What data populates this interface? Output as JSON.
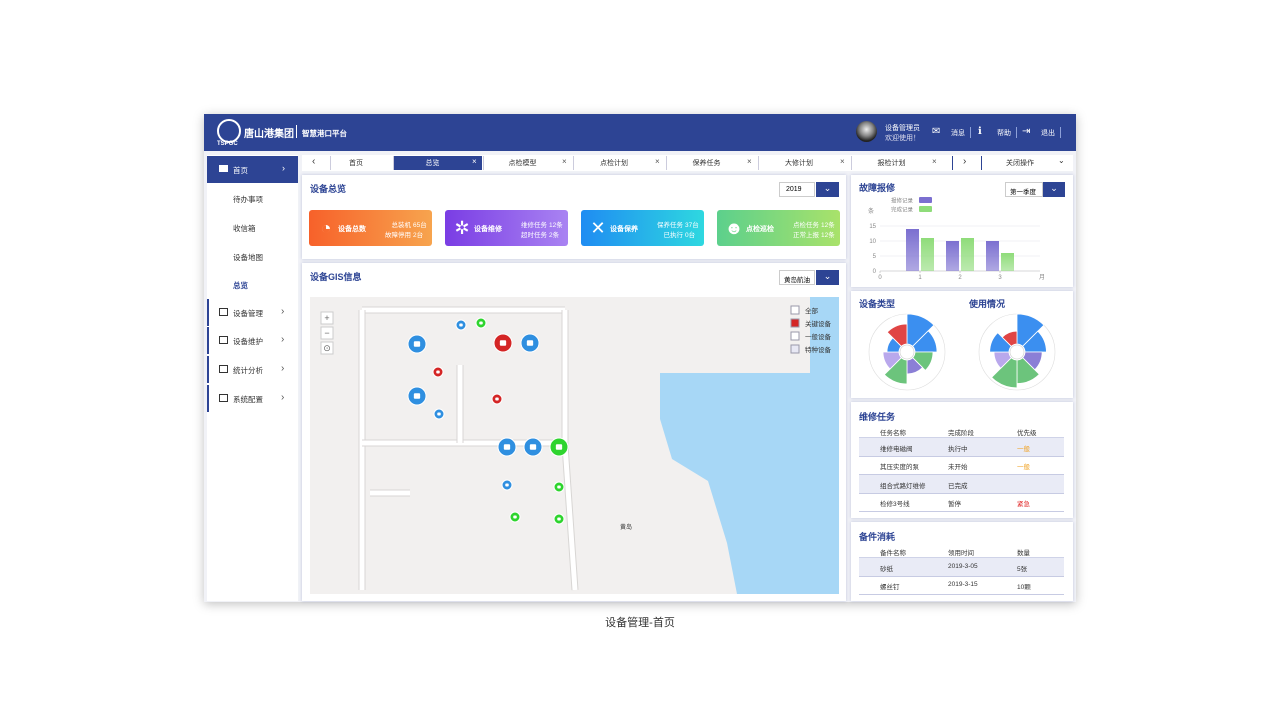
{
  "header": {
    "logo_text": "唐山港集团",
    "logo_sub": "TSPGC",
    "platform": "智慧港口平台",
    "user_role": "设备管理员",
    "user_greeting": "欢迎使用！",
    "actions": [
      "消息",
      "帮助",
      "退出"
    ]
  },
  "sidebar": {
    "home": "首页",
    "sub_items": [
      "待办事项",
      "收信箱",
      "设备地图",
      "总览"
    ],
    "groups": [
      "设备管理",
      "设备维护",
      "统计分析",
      "系统配置"
    ]
  },
  "tabs": {
    "items": [
      "首页",
      "总览",
      "点检模型",
      "点检计划",
      "保养任务",
      "大修计划",
      "报检计划"
    ],
    "close_menu": "关闭操作"
  },
  "overview": {
    "title": "设备总览",
    "year": "2019",
    "cards": [
      {
        "title": "设备总数",
        "lines": [
          [
            "总装机",
            "65台"
          ],
          [
            "故障停用",
            "2台"
          ]
        ]
      },
      {
        "title": "设备维修",
        "lines": [
          [
            "维修任务",
            "12条"
          ],
          [
            "超时任务",
            "2条"
          ]
        ]
      },
      {
        "title": "设备保养",
        "lines": [
          [
            "保养任务",
            "37台"
          ],
          [
            "已执行",
            "0台"
          ]
        ]
      },
      {
        "title": "点检巡检",
        "lines": [
          [
            "点检任务",
            "12条"
          ],
          [
            "正常上报",
            "12条"
          ]
        ]
      }
    ]
  },
  "gis": {
    "title": "设备GIS信息",
    "area": "黄岛航油",
    "legend": [
      "全部",
      "关键设备",
      "一般设备",
      "特种设备"
    ],
    "place": "黄岛"
  },
  "fault_chart": {
    "type": "bar",
    "title": "故障报修",
    "period": "第一季度",
    "y_label": "条",
    "x_label": "月",
    "x": [
      1,
      2,
      3
    ],
    "xlim": [
      0,
      4
    ],
    "xticks": [
      0,
      1,
      2,
      3
    ],
    "ylim": [
      0,
      20
    ],
    "yticks": [
      0,
      5,
      10,
      15
    ],
    "grid": true,
    "series": [
      {
        "name": "报修记录",
        "color": "#7b6fd0",
        "values": [
          14,
          10,
          10
        ]
      },
      {
        "name": "完成记录",
        "color": "#8fdc7a",
        "values": [
          11,
          11,
          6
        ]
      }
    ]
  },
  "device_type": {
    "title": "设备类型",
    "values": [
      30,
      22,
      18,
      14,
      24,
      16,
      12,
      20
    ],
    "colors": [
      "#3b8ff0",
      "#3b8ff0",
      "#6cc47c",
      "#8b7fd6",
      "#6cc47c",
      "#b9a8ec",
      "#3b8ff0",
      "#e04545"
    ]
  },
  "usage": {
    "title": "使用情况",
    "values": [
      28,
      20,
      16,
      22,
      26,
      14,
      18,
      12
    ],
    "colors": [
      "#3b8ff0",
      "#3b8ff0",
      "#8b7fd6",
      "#6cc47c",
      "#6cc47c",
      "#b9a8ec",
      "#3b8ff0",
      "#e04545"
    ]
  },
  "repair": {
    "title": "维修任务",
    "headers": [
      "任务名称",
      "完成阶段",
      "优先级"
    ],
    "rows": [
      [
        "维修电磁阀",
        "执行中",
        "一般"
      ],
      [
        "其压实度的泵",
        "未开始",
        "一般"
      ],
      [
        "组合式路灯维修",
        "已完成",
        null
      ],
      [
        "检修3号线",
        "暂停",
        "紧急"
      ]
    ]
  },
  "spares": {
    "title": "备件消耗",
    "headers": [
      "备件名称",
      "领用时间",
      "数量"
    ],
    "rows": [
      [
        "砂纸",
        "2019-3-05",
        "5张"
      ],
      [
        "螺丝钉",
        "2019-3-15",
        "10颗"
      ]
    ]
  },
  "caption": "设备管理-首页"
}
